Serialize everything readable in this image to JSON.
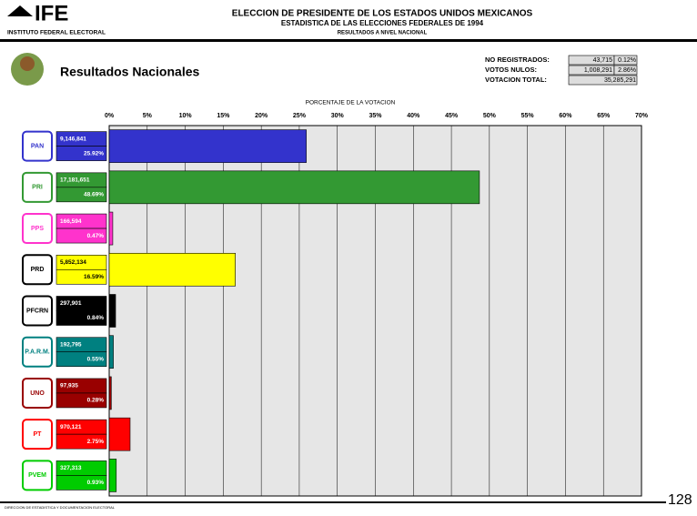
{
  "header": {
    "logo": "IFE",
    "institute": "INSTITUTO FEDERAL ELECTORAL",
    "title": "ELECCION DE PRESIDENTE DE LOS ESTADOS UNIDOS MEXICANOS",
    "subtitle": "ESTADISTICA DE LAS ELECCIONES FEDERALES DE 1994",
    "subsubtitle": "RESULTADOS A NIVEL NACIONAL"
  },
  "section": "Resultados Nacionales",
  "stats": [
    {
      "label": "NO REGISTRADOS:",
      "votes": 43715,
      "votes_label": "43,715",
      "percent": 0.12,
      "percent_label": "0.12%"
    },
    {
      "label": "VOTOS NULOS:",
      "votes": 1008291,
      "votes_label": "1,008,291",
      "percent": 2.86,
      "percent_label": "2.86%"
    },
    {
      "label": "VOTACION TOTAL:",
      "votes": 35285291,
      "votes_label": "35,285,291"
    }
  ],
  "chart_data": {
    "type": "hbar",
    "xlabel": "PORCENTAJE DE LA VOTACION",
    "categories": [
      "PAN",
      "PRI",
      "PPS",
      "PRD",
      "PFCRN",
      "P.A.R.M.",
      "UNO",
      "PT",
      "PVEM"
    ],
    "values": [
      25.92,
      48.69,
      0.47,
      16.59,
      0.84,
      0.55,
      0.28,
      2.75,
      0.93
    ],
    "value_labels": [
      "25.92%",
      "48.69%",
      "0.47%",
      "16.59%",
      "0.84%",
      "0.55%",
      "0.28%",
      "2.75%",
      "0.93%"
    ],
    "votes": [
      9146841,
      17181651,
      166594,
      5852134,
      297901,
      192795,
      97935,
      970121,
      327313
    ],
    "vote_labels": [
      "9,146,841",
      "17,181,651",
      "166,594",
      "5,852,134",
      "297,901",
      "192,795",
      "97,935",
      "970,121",
      "327,313"
    ],
    "colors": [
      "#3333cc",
      "#339933",
      "#ff33cc",
      "#ffff00",
      "#000000",
      "#008080",
      "#990000",
      "#ff0000",
      "#00cc00"
    ],
    "xlim": [
      0,
      70
    ],
    "xticks": [
      {
        "value": 0,
        "label": "0%"
      },
      {
        "value": 5,
        "label": "5%"
      },
      {
        "value": 10,
        "label": "10%"
      },
      {
        "value": 15,
        "label": "15%"
      },
      {
        "value": 20,
        "label": "20%"
      },
      {
        "value": 25,
        "label": "25%"
      },
      {
        "value": 30,
        "label": "30%"
      },
      {
        "value": 35,
        "label": "35%"
      },
      {
        "value": 40,
        "label": "40%"
      },
      {
        "value": 45,
        "label": "45%"
      },
      {
        "value": 50,
        "label": "50%"
      },
      {
        "value": 55,
        "label": "55%"
      },
      {
        "value": 60,
        "label": "60%"
      },
      {
        "value": 65,
        "label": "65%"
      },
      {
        "value": 70,
        "label": "70%"
      }
    ],
    "grid": true
  },
  "footer": {
    "department": "DIRECCION DE ESTADISTICA Y DOCUMENTACION ELECTORAL",
    "page": "128"
  }
}
